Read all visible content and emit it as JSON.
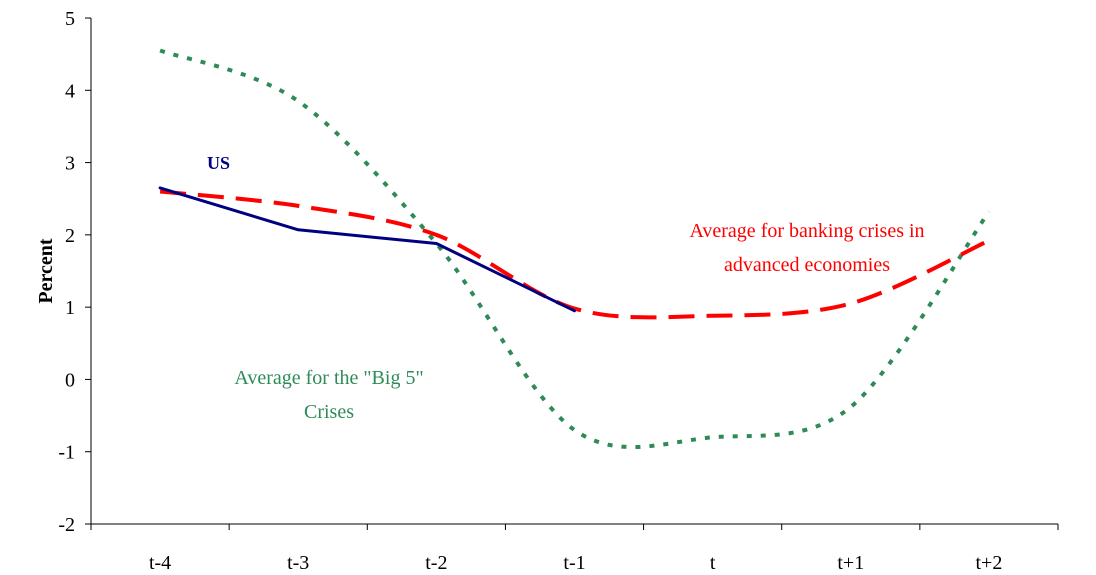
{
  "chart_data": {
    "type": "line",
    "title": "",
    "xlabel": "",
    "ylabel": "Percent",
    "categories": [
      "t-4",
      "t-3",
      "t-2",
      "t-1",
      "t",
      "t+1",
      "t+2"
    ],
    "y_ticks": [
      "-2",
      "-1",
      "0",
      "1",
      "2",
      "3",
      "4",
      "5"
    ],
    "ylim": [
      -2,
      5
    ],
    "grid": false,
    "legend": "none",
    "series": [
      {
        "name": "US",
        "color": "#000080",
        "style": "solid",
        "values": [
          2.65,
          2.07,
          1.88,
          0.95,
          null,
          null,
          null
        ]
      },
      {
        "name": "Average for banking crises in advanced economies",
        "color": "#ff0000",
        "style": "dashed",
        "values": [
          2.6,
          2.4,
          2.0,
          0.98,
          0.88,
          1.05,
          1.92
        ]
      },
      {
        "name": "Average for the \"Big 5\" Crises",
        "color": "#2e8b57",
        "style": "dotted",
        "values": [
          4.55,
          3.85,
          1.88,
          -0.7,
          -0.8,
          -0.38,
          2.32
        ]
      }
    ],
    "annotations": {
      "us": "US",
      "advanced_line1": "Average for banking crises in",
      "advanced_line2": "advanced economies",
      "big5_line1": "Average for the \"Big 5\"",
      "big5_line2": "Crises"
    }
  }
}
